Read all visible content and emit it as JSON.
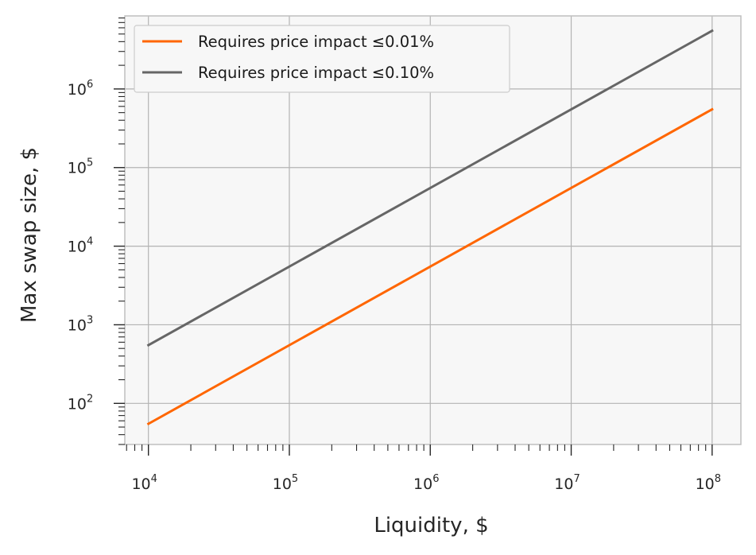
{
  "chart_data": {
    "type": "line",
    "xscale": "log",
    "yscale": "log",
    "xlabel": "Liquidity, $",
    "ylabel": "Max swap size, $",
    "xlim": [
      6800,
      160000000
    ],
    "ylim": [
      30,
      8500000
    ],
    "x_ticks": [
      {
        "base": "10",
        "exp": "4",
        "value": 10000
      },
      {
        "base": "10",
        "exp": "5",
        "value": 100000
      },
      {
        "base": "10",
        "exp": "6",
        "value": 1000000
      },
      {
        "base": "10",
        "exp": "7",
        "value": 10000000
      },
      {
        "base": "10",
        "exp": "8",
        "value": 100000000
      }
    ],
    "y_ticks": [
      {
        "base": "10",
        "exp": "2",
        "value": 100
      },
      {
        "base": "10",
        "exp": "3",
        "value": 1000
      },
      {
        "base": "10",
        "exp": "4",
        "value": 10000
      },
      {
        "base": "10",
        "exp": "5",
        "value": 100000
      },
      {
        "base": "10",
        "exp": "6",
        "value": 1000000
      }
    ],
    "grid": true,
    "legend_position": "top-left",
    "series": [
      {
        "name": "Requires price impact ≤0.01%",
        "color": "#ff6600",
        "x": [
          10000,
          100000000
        ],
        "y": [
          55,
          550000
        ]
      },
      {
        "name": "Requires price impact ≤0.10%",
        "color": "#666666",
        "x": [
          10000,
          100000000
        ],
        "y": [
          550,
          5500000
        ]
      }
    ]
  },
  "colors": {
    "plot_background": "#f7f7f7",
    "grid": "#b3b3b3",
    "spine": "#bfbfbf",
    "text": "#262626"
  }
}
